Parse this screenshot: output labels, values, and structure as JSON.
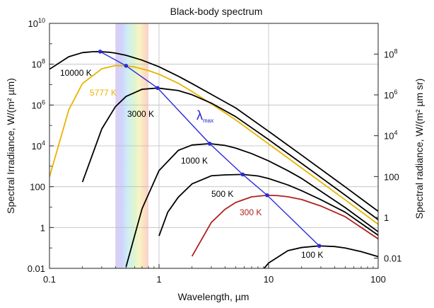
{
  "chart_data": {
    "type": "line",
    "title": "Black-body spectrum",
    "xlabel": "Wavelength, µm",
    "ylabel_left": "Spectral Irradiance, W/(m² µm)",
    "ylabel_right": "Spectral  radiance, W/(m² µm sr)",
    "x_scale": "log",
    "y_scale": "log",
    "xlim": [
      0.1,
      100
    ],
    "ylim": [
      0.01,
      10000000000
    ],
    "x_ticks": [
      {
        "value": 0.1,
        "label": "0.1"
      },
      {
        "value": 1,
        "label": "1"
      },
      {
        "value": 10,
        "label": "10"
      },
      {
        "value": 100,
        "label": "100"
      }
    ],
    "y_ticks_left": [
      {
        "value": 0.01,
        "base": "0.01",
        "exp": ""
      },
      {
        "value": 1,
        "base": "1",
        "exp": ""
      },
      {
        "value": 100,
        "base": "100",
        "exp": ""
      },
      {
        "value": 10000,
        "base": "10",
        "exp": "4"
      },
      {
        "value": 1000000,
        "base": "10",
        "exp": "6"
      },
      {
        "value": 100000000,
        "base": "10",
        "exp": "8"
      },
      {
        "value": 10000000000,
        "base": "10",
        "exp": "10"
      }
    ],
    "y_ticks_right": [
      {
        "value": 0.0314,
        "base": "0.01",
        "exp": ""
      },
      {
        "value": 3.14,
        "base": "1",
        "exp": ""
      },
      {
        "value": 314,
        "base": "100",
        "exp": ""
      },
      {
        "value": 31400,
        "base": "10",
        "exp": "4"
      },
      {
        "value": 3140000,
        "base": "10",
        "exp": "6"
      },
      {
        "value": 314000000,
        "base": "10",
        "exp": "8"
      }
    ],
    "grid": true,
    "visible_band_um": [
      0.4,
      0.8
    ],
    "series": [
      {
        "name": "10000 K",
        "temperature_K": 10000,
        "color": "#000000",
        "x": [
          0.1,
          0.15,
          0.2,
          0.25,
          0.29,
          0.35,
          0.4,
          0.5,
          0.7,
          1,
          1.5,
          2,
          3,
          5,
          10,
          20,
          50,
          100
        ],
        "y": [
          56700000.0,
          232000000.0,
          369000000.0,
          411000000.0,
          413000000.0,
          385000000.0,
          350000000.0,
          273000000.0,
          158000000.0,
          74800000.0,
          25800000.0,
          11200000.0,
          3340000.0,
          725000.0,
          51700.0,
          3520.0,
          97.8,
          6.23
        ]
      },
      {
        "name": "5777 K",
        "temperature_K": 5777,
        "color": "#e8b400",
        "x": [
          0.1,
          0.15,
          0.2,
          0.3,
          0.4,
          0.5,
          0.6,
          0.8,
          1,
          1.5,
          2,
          3,
          5,
          10,
          20,
          50,
          100
        ],
        "y": [
          300.0,
          584000.0,
          11300000.0,
          59500000.0,
          85300000.0,
          83500000.0,
          72600000.0,
          48900000.0,
          32200000.0,
          11600000.0,
          4600000.0,
          1150000.0,
          188000.0,
          12400.0,
          827.0,
          22.8,
          1.44
        ]
      },
      {
        "name": "3000 K",
        "temperature_K": 3000,
        "color": "#000000",
        "x": [
          0.2,
          0.3,
          0.4,
          0.5,
          0.7,
          0.97,
          1.5,
          2,
          3,
          5,
          10,
          20,
          50,
          100
        ],
        "y": [
          169.0,
          67200.0,
          835000.0,
          2640000.0,
          5890000.0,
          6800000.0,
          5120000.0,
          3200000.0,
          1240000.0,
          271000.0,
          20300.0,
          1390.0,
          38.5,
          2.43
        ]
      },
      {
        "name": "1000 K",
        "temperature_K": 1000,
        "color": "#000000",
        "x": [
          0.5,
          0.7,
          1,
          1.5,
          2,
          2.9,
          4,
          5,
          7,
          10,
          15,
          20,
          50,
          100
        ],
        "y": [
          0.012,
          8.4,
          616.0,
          6020.0,
          11000.0,
          12800.0,
          10500.0,
          7770.0,
          4170.0,
          1840.0,
          607.0,
          255.0,
          9.52,
          0.62
        ]
      },
      {
        "name": "500 K",
        "temperature_K": 500,
        "color": "#000000",
        "x": [
          1.0,
          1.2,
          1.5,
          2,
          3,
          4,
          5.8,
          8,
          10,
          15,
          20,
          30,
          50,
          100
        ],
        "y": [
          0.387,
          5.6,
          30.7,
          137.0,
          342.0,
          379.0,
          398.0,
          336.0,
          251.0,
          122.0,
          63.7,
          23.0,
          5.63,
          0.419
        ]
      },
      {
        "name": "300 K",
        "temperature_K": 300,
        "color": "#b22020",
        "x": [
          2,
          3,
          4,
          5,
          7,
          9.7,
          12,
          15,
          20,
          30,
          50,
          100
        ],
        "y": [
          0.0392,
          1.77,
          7.81,
          16.8,
          31.9,
          38.1,
          36.7,
          32.2,
          23.6,
          11.3,
          3.38,
          0.278
        ]
      },
      {
        "name": "100 K",
        "temperature_K": 100,
        "color": "#000000",
        "x": [
          8,
          10,
          15,
          20,
          29,
          40,
          50,
          70,
          100
        ],
        "y": [
          0.00433,
          0.0183,
          0.0738,
          0.105,
          0.126,
          0.117,
          0.099,
          0.0661,
          0.0374
        ]
      }
    ],
    "annotation": {
      "text": "λ",
      "subscript": "max",
      "color": "#2020cc"
    },
    "lambda_max_line": {
      "color": "#2a2ad8",
      "x": [
        0.29,
        0.5,
        0.97,
        2.9,
        5.8,
        9.7,
        29
      ],
      "y": [
        413000000.0,
        83500000.0,
        6800000.0,
        12800.0,
        398.0,
        38.1,
        0.126
      ]
    }
  }
}
